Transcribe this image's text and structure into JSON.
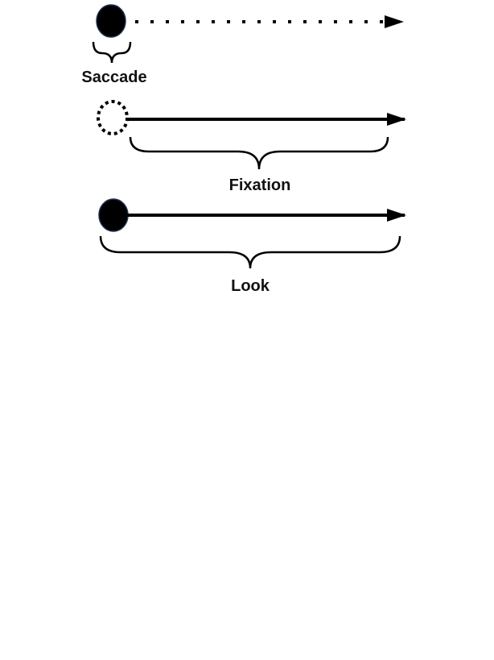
{
  "diagram": {
    "rows": [
      {
        "label": "Saccade",
        "start_marker": "filled-circle",
        "line_style": "dotted"
      },
      {
        "label": "Fixation",
        "start_marker": "dashed-circle",
        "line_style": "solid"
      },
      {
        "label": "Look",
        "start_marker": "filled-circle",
        "line_style": "solid"
      }
    ],
    "colors": {
      "stroke": "#000000",
      "fill": "#000000",
      "label": "#111111"
    }
  }
}
